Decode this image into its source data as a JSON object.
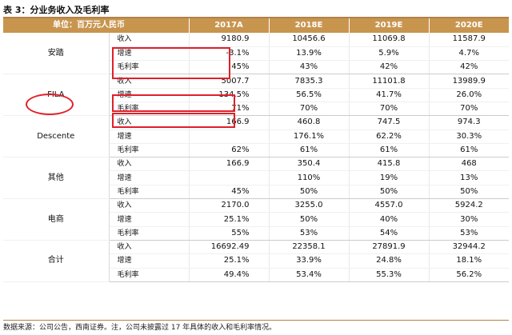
{
  "title": "表 3：分业务收入及毛利率",
  "header": {
    "unit": "单位：百万元人民币",
    "years": [
      "2017A",
      "2018E",
      "2019E",
      "2020E"
    ]
  },
  "groups": [
    {
      "name": "安踏",
      "rows": [
        {
          "metric": "收入",
          "values": [
            "9180.9",
            "10456.6",
            "11069.8",
            "11587.9"
          ]
        },
        {
          "metric": "增速",
          "values": [
            "-3.1%",
            "13.9%",
            "5.9%",
            "4.7%"
          ]
        },
        {
          "metric": "毛利率",
          "values": [
            "45%",
            "43%",
            "42%",
            "42%"
          ]
        }
      ]
    },
    {
      "name": "FILA",
      "rows": [
        {
          "metric": "收入",
          "values": [
            "5007.7",
            "7835.3",
            "11101.8",
            "13989.9"
          ]
        },
        {
          "metric": "增速",
          "values": [
            "134.5%",
            "56.5%",
            "41.7%",
            "26.0%"
          ]
        },
        {
          "metric": "毛利率",
          "values": [
            "71%",
            "70%",
            "70%",
            "70%"
          ]
        }
      ]
    },
    {
      "name": "Descente",
      "rows": [
        {
          "metric": "收入",
          "values": [
            "166.9",
            "460.8",
            "747.5",
            "974.3"
          ]
        },
        {
          "metric": "增速",
          "values": [
            "",
            "176.1%",
            "62.2%",
            "30.3%"
          ]
        },
        {
          "metric": "毛利率",
          "values": [
            "62%",
            "61%",
            "61%",
            "61%"
          ]
        }
      ]
    },
    {
      "name": "其他",
      "rows": [
        {
          "metric": "收入",
          "values": [
            "166.9",
            "350.4",
            "415.8",
            "468"
          ]
        },
        {
          "metric": "增速",
          "values": [
            "",
            "110%",
            "19%",
            "13%"
          ]
        },
        {
          "metric": "毛利率",
          "values": [
            "45%",
            "50%",
            "50%",
            "50%"
          ]
        }
      ]
    },
    {
      "name": "电商",
      "rows": [
        {
          "metric": "收入",
          "values": [
            "2170.0",
            "3255.0",
            "4557.0",
            "5924.2"
          ]
        },
        {
          "metric": "增速",
          "values": [
            "25.1%",
            "50%",
            "40%",
            "30%"
          ]
        },
        {
          "metric": "毛利率",
          "values": [
            "55%",
            "53%",
            "54%",
            "53%"
          ]
        }
      ]
    },
    {
      "name": "合计",
      "rows": [
        {
          "metric": "收入",
          "values": [
            "16692.49",
            "22358.1",
            "27891.9",
            "32944.2"
          ]
        },
        {
          "metric": "增速",
          "values": [
            "25.1%",
            "33.9%",
            "24.8%",
            "18.1%"
          ]
        },
        {
          "metric": "毛利率",
          "values": [
            "49.4%",
            "53.4%",
            "55.3%",
            "56.2%"
          ]
        }
      ]
    }
  ],
  "annotation_color": "#e0202a",
  "header_color": "#c8954f",
  "source": "数据来源：公司公告，西南证券。注，公司未披露过 17 年具体的收入和毛利率情况。"
}
